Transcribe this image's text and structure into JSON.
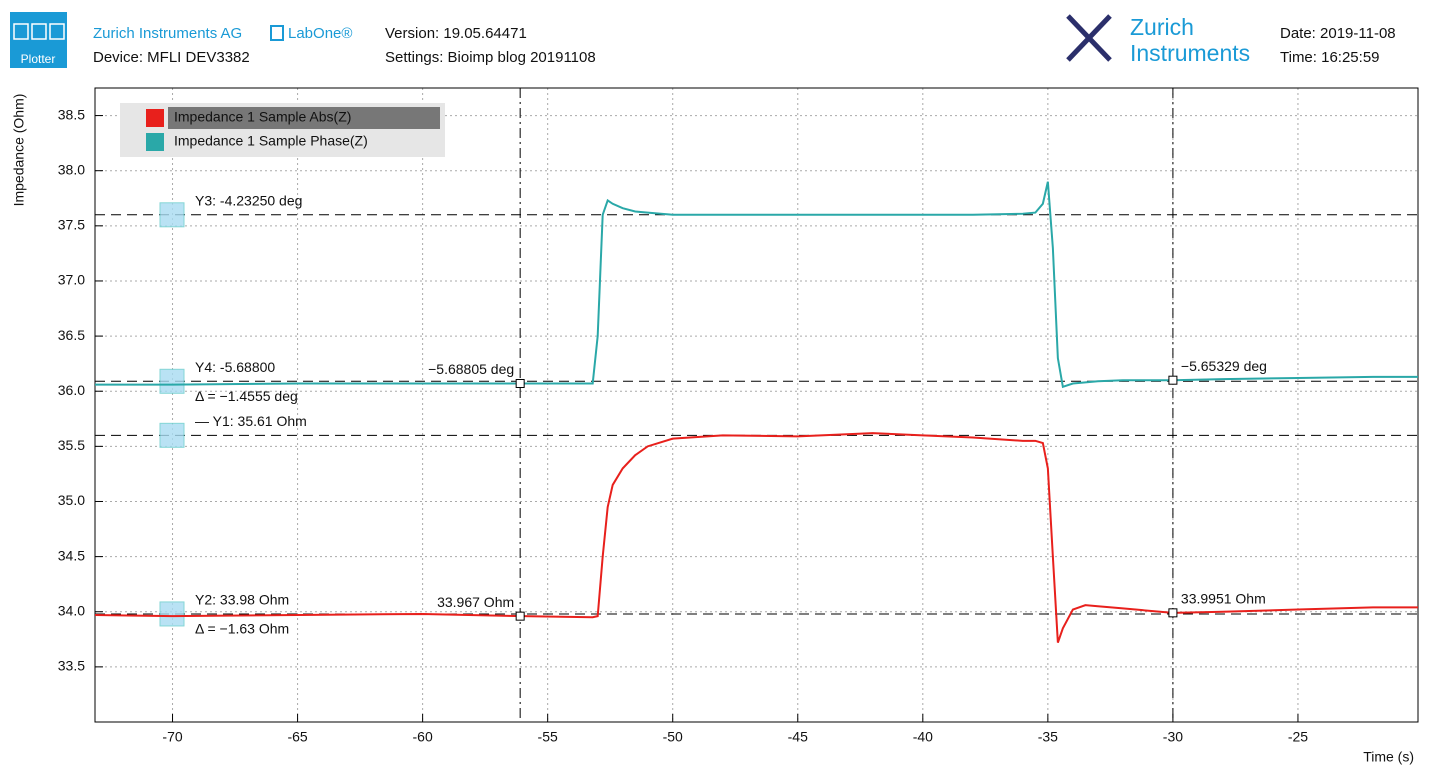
{
  "header": {
    "badge": "Plotter",
    "company": "Zurich Instruments AG",
    "product": "LabOne®",
    "device": "Device:  MFLI DEV3382",
    "version": "Version: 19.05.64471",
    "settings": "Settings: Bioimp blog 20191108",
    "logo_1": "Zurich",
    "logo_2": "Instruments",
    "date": "Date: 2019-11-08",
    "time": "Time: 16:25:59"
  },
  "chart_data": {
    "type": "line",
    "ylabel": "Impedance (Ohm)",
    "xlabel": "Time (s)",
    "xlim": [
      -73.1,
      -20.2
    ],
    "xticks": [
      -70,
      -65,
      -60,
      -55,
      -50,
      -45,
      -40,
      -35,
      -30,
      -25
    ],
    "ylim": [
      33.0,
      38.75
    ],
    "yticks": [
      33.5,
      {
        "value": 34,
        "label": "34.0"
      },
      34.5,
      {
        "value": 35,
        "label": "35.0"
      },
      35.5,
      {
        "value": 36,
        "label": "36.0"
      },
      36.5,
      {
        "value": 37,
        "label": "37.0"
      },
      37.5,
      {
        "value": 38,
        "label": "38.0"
      },
      38.5
    ],
    "grid": true,
    "legend": "top-left",
    "x": [
      -73.1,
      -70,
      -65,
      -60,
      -56,
      -53.2,
      -53.0,
      -52.8,
      -52.6,
      -52.4,
      -52,
      -51.5,
      -51,
      -50,
      -48,
      -45,
      -42,
      -40,
      -38,
      -36,
      -35.5,
      -35.2,
      -35.0,
      -34.8,
      -34.6,
      -34.4,
      -34.0,
      -33.5,
      -33,
      -32,
      -30,
      -28,
      -25,
      -22,
      -20.2
    ],
    "series": [
      {
        "name": "Impedance 1 Sample Abs(Z)",
        "color": "#e8201c",
        "values": [
          33.97,
          33.96,
          33.97,
          33.98,
          33.96,
          33.95,
          33.96,
          34.5,
          34.95,
          35.15,
          35.3,
          35.42,
          35.5,
          35.57,
          35.6,
          35.59,
          35.62,
          35.6,
          35.58,
          35.55,
          35.55,
          35.53,
          35.3,
          34.5,
          33.72,
          33.85,
          34.02,
          34.06,
          34.05,
          34.03,
          33.99,
          34.0,
          34.02,
          34.04,
          34.04
        ]
      },
      {
        "name": "Impedance 1 Sample Phase(Z)",
        "color": "#2aa8a8",
        "values": [
          36.06,
          36.06,
          36.07,
          36.07,
          36.07,
          36.07,
          36.5,
          37.6,
          37.73,
          37.7,
          37.66,
          37.63,
          37.62,
          37.6,
          37.6,
          37.6,
          37.6,
          37.6,
          37.6,
          37.61,
          37.62,
          37.7,
          37.9,
          37.3,
          36.3,
          36.04,
          36.07,
          36.08,
          36.09,
          36.1,
          36.1,
          36.11,
          36.12,
          36.13,
          36.13
        ]
      }
    ],
    "vcursors": [
      -56.1,
      -30.0
    ],
    "hcursors": [
      {
        "value": 37.6,
        "label": "Y3: -4.23250 deg"
      },
      {
        "value": 36.09,
        "label": "Y4: -5.68800",
        "delta": "Δ = −1.4555 deg"
      },
      {
        "value": 35.6,
        "label": "— Y1: 35.61 Ohm"
      },
      {
        "value": 33.98,
        "label": "Y2: 33.98 Ohm",
        "delta": "Δ = −1.63 Ohm"
      }
    ],
    "annotations": [
      {
        "text": "−5.68805 deg",
        "x": -56.1,
        "y": 36.07,
        "anchor": "end"
      },
      {
        "text": "−5.65329 deg",
        "x": -30.0,
        "y": 36.1,
        "anchor": "start"
      },
      {
        "text": "33.967 Ohm",
        "x": -56.1,
        "y": 33.96,
        "anchor": "end"
      },
      {
        "text": "33.9951 Ohm",
        "x": -30.0,
        "y": 33.99,
        "anchor": "start"
      }
    ]
  }
}
